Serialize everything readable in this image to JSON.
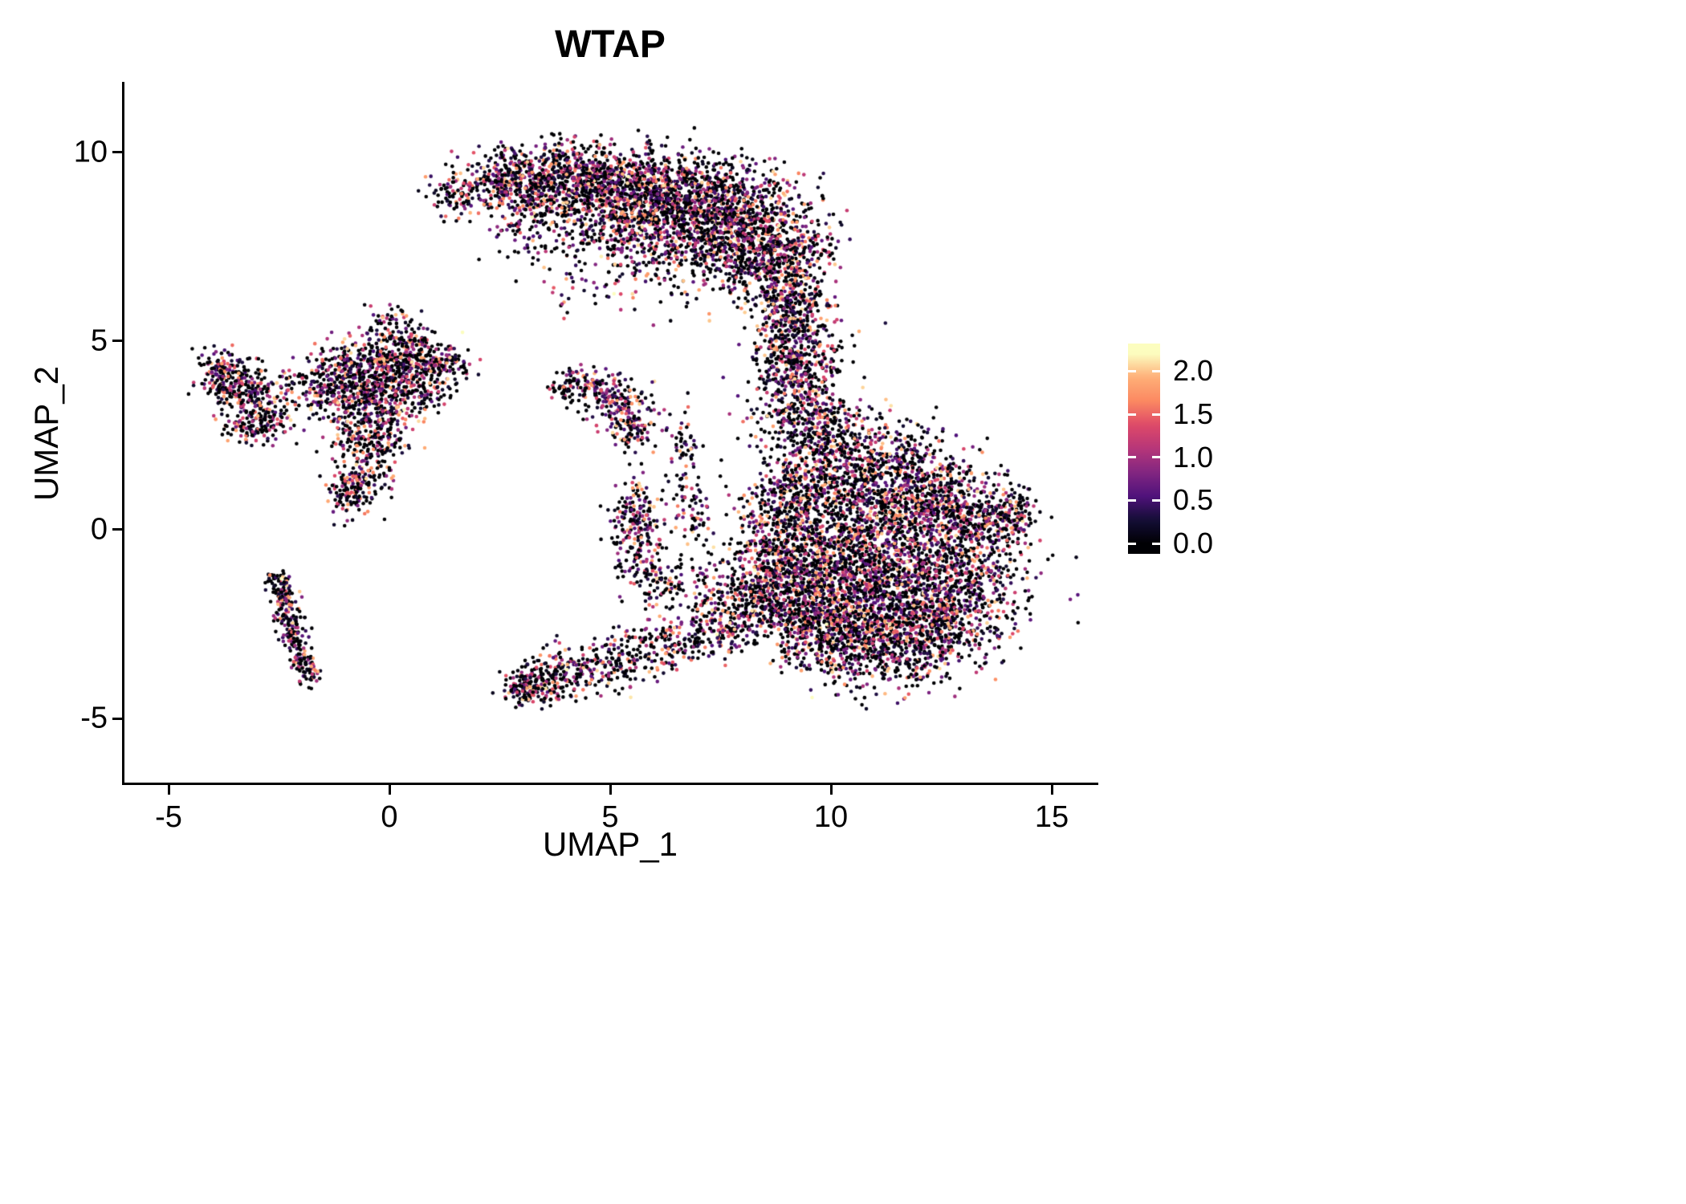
{
  "chart_data": {
    "type": "scatter",
    "title": "WTAP",
    "xlabel": "UMAP_1",
    "ylabel": "UMAP_2",
    "xlim": [
      -6,
      16
    ],
    "ylim": [
      -6.7,
      11.8
    ],
    "grid": false,
    "background": "#ffffff",
    "axis_color": "#000000",
    "point_radius": 2.3,
    "seed": 1234,
    "xticks": [
      {
        "value": -5,
        "label": "-5"
      },
      {
        "value": 0,
        "label": "0"
      },
      {
        "value": 5,
        "label": "5"
      },
      {
        "value": 10,
        "label": "10"
      },
      {
        "value": 15,
        "label": "15"
      }
    ],
    "yticks": [
      {
        "value": -5,
        "label": "-5"
      },
      {
        "value": 0,
        "label": "0"
      },
      {
        "value": 5,
        "label": "5"
      },
      {
        "value": 10,
        "label": "10"
      }
    ],
    "colorbar": {
      "colormap": "magma",
      "data_range": [
        0,
        2.2
      ],
      "bar_range": [
        -0.12,
        2.32
      ],
      "ticks": [
        {
          "value": 2.0,
          "label": "2.0"
        },
        {
          "value": 1.5,
          "label": "1.5"
        },
        {
          "value": 1.0,
          "label": "1.0"
        },
        {
          "value": 0.5,
          "label": "0.5"
        },
        {
          "value": 0.0,
          "label": "0.0"
        }
      ],
      "stops": [
        {
          "t": 0.0,
          "color": "#000004"
        },
        {
          "t": 0.125,
          "color": "#140e36"
        },
        {
          "t": 0.25,
          "color": "#50127b"
        },
        {
          "t": 0.375,
          "color": "#822681"
        },
        {
          "t": 0.5,
          "color": "#b63679"
        },
        {
          "t": 0.625,
          "color": "#de4968"
        },
        {
          "t": 0.75,
          "color": "#fb8861"
        },
        {
          "t": 0.875,
          "color": "#feae77"
        },
        {
          "t": 1.0,
          "color": "#fcfdbf"
        }
      ]
    },
    "value_distribution": {
      "p_zero": 0.35,
      "gamma": 1.6,
      "scale": 2.1,
      "max": 2.2
    },
    "cluster_format": [
      "x",
      "y",
      "sx",
      "sy",
      "n"
    ],
    "clusters": [
      [
        1.5,
        8.9,
        0.35,
        0.3,
        80
      ],
      [
        2.3,
        9.2,
        0.5,
        0.35,
        150
      ],
      [
        3.2,
        9.4,
        0.6,
        0.4,
        240
      ],
      [
        4.2,
        9.4,
        0.7,
        0.45,
        300
      ],
      [
        5.2,
        9.2,
        0.8,
        0.5,
        380
      ],
      [
        6.2,
        9.0,
        0.9,
        0.55,
        450
      ],
      [
        7.2,
        8.6,
        0.9,
        0.6,
        470
      ],
      [
        8.1,
        8.2,
        0.8,
        0.7,
        420
      ],
      [
        8.8,
        7.4,
        0.6,
        0.7,
        300
      ],
      [
        9.0,
        6.4,
        0.5,
        0.6,
        220
      ],
      [
        6.8,
        7.6,
        1.0,
        0.5,
        280
      ],
      [
        5.8,
        8.1,
        0.9,
        0.5,
        220
      ],
      [
        4.6,
        8.5,
        0.8,
        0.4,
        150
      ],
      [
        3.4,
        8.7,
        0.6,
        0.35,
        100
      ],
      [
        7.8,
        7.0,
        0.7,
        0.5,
        180
      ],
      [
        5.5,
        7.2,
        1.2,
        0.6,
        80
      ],
      [
        4.2,
        7.7,
        0.8,
        0.4,
        50
      ],
      [
        2.9,
        8.0,
        0.4,
        0.5,
        50
      ],
      [
        4.8,
        6.4,
        1.0,
        0.5,
        40
      ],
      [
        9.2,
        5.6,
        0.4,
        0.5,
        160
      ],
      [
        9.4,
        4.7,
        0.5,
        0.5,
        180
      ],
      [
        9.2,
        3.8,
        0.55,
        0.5,
        200
      ],
      [
        9.5,
        2.9,
        0.6,
        0.5,
        220
      ],
      [
        8.8,
        4.8,
        0.3,
        0.6,
        80
      ],
      [
        10.3,
        2.3,
        0.8,
        0.5,
        220
      ],
      [
        11.3,
        1.6,
        1.0,
        0.6,
        320
      ],
      [
        10.2,
        1.2,
        0.9,
        0.6,
        280
      ],
      [
        11.0,
        0.4,
        1.3,
        0.7,
        550
      ],
      [
        12.4,
        0.6,
        0.9,
        0.6,
        350
      ],
      [
        13.4,
        0.2,
        0.6,
        0.5,
        220
      ],
      [
        14.1,
        0.4,
        0.3,
        0.35,
        90
      ],
      [
        11.6,
        -0.9,
        1.4,
        0.7,
        650
      ],
      [
        12.7,
        -1.6,
        0.9,
        0.6,
        380
      ],
      [
        10.4,
        -1.6,
        1.1,
        0.7,
        480
      ],
      [
        11.4,
        -2.4,
        1.1,
        0.6,
        420
      ],
      [
        12.6,
        -2.7,
        0.7,
        0.5,
        230
      ],
      [
        10.4,
        -3.0,
        0.8,
        0.5,
        260
      ],
      [
        11.4,
        -3.4,
        0.8,
        0.4,
        200
      ],
      [
        9.6,
        -0.6,
        0.7,
        0.7,
        300
      ],
      [
        9.2,
        -1.8,
        0.6,
        0.6,
        240
      ],
      [
        9.8,
        -2.6,
        0.7,
        0.5,
        220
      ],
      [
        9.0,
        0.8,
        0.5,
        0.7,
        200
      ],
      [
        8.6,
        -0.3,
        0.4,
        0.6,
        150
      ],
      [
        8.5,
        -1.4,
        0.45,
        0.5,
        140
      ],
      [
        8.0,
        -2.2,
        0.5,
        0.4,
        130
      ],
      [
        7.2,
        -2.7,
        0.6,
        0.35,
        120
      ],
      [
        6.3,
        -3.1,
        0.6,
        0.35,
        110
      ],
      [
        5.3,
        -3.5,
        0.6,
        0.35,
        120
      ],
      [
        4.3,
        -3.8,
        0.5,
        0.3,
        130
      ],
      [
        3.4,
        -4.0,
        0.35,
        0.3,
        150
      ],
      [
        3.0,
        -4.2,
        0.2,
        0.2,
        80
      ],
      [
        5.7,
        -0.4,
        0.35,
        0.6,
        140
      ],
      [
        5.5,
        0.6,
        0.3,
        0.4,
        90
      ],
      [
        6.2,
        -1.4,
        0.4,
        0.4,
        90
      ],
      [
        6.7,
        1.7,
        0.2,
        0.7,
        70
      ],
      [
        6.9,
        0.3,
        0.25,
        0.4,
        50
      ],
      [
        7.5,
        -1.6,
        0.4,
        0.4,
        80
      ],
      [
        4.3,
        3.9,
        0.3,
        0.2,
        60
      ],
      [
        4.9,
        3.6,
        0.35,
        0.3,
        100
      ],
      [
        5.3,
        3.1,
        0.35,
        0.35,
        110
      ],
      [
        5.6,
        2.6,
        0.3,
        0.3,
        70
      ],
      [
        3.9,
        3.7,
        0.15,
        0.15,
        25
      ],
      [
        -3.6,
        4.0,
        0.35,
        0.3,
        120
      ],
      [
        -3.1,
        3.4,
        0.45,
        0.4,
        180
      ],
      [
        -3.9,
        4.3,
        0.25,
        0.25,
        60
      ],
      [
        -2.7,
        2.9,
        0.3,
        0.3,
        80
      ],
      [
        -3.3,
        2.6,
        0.2,
        0.2,
        40
      ],
      [
        -0.3,
        4.4,
        0.7,
        0.35,
        240
      ],
      [
        0.7,
        4.5,
        0.45,
        0.3,
        130
      ],
      [
        1.4,
        4.5,
        0.25,
        0.2,
        50
      ],
      [
        -0.6,
        3.8,
        0.55,
        0.4,
        220
      ],
      [
        0.2,
        3.5,
        0.45,
        0.45,
        180
      ],
      [
        -0.9,
        3.0,
        0.4,
        0.4,
        140
      ],
      [
        -0.2,
        2.5,
        0.3,
        0.4,
        110
      ],
      [
        -0.5,
        1.7,
        0.3,
        0.5,
        140
      ],
      [
        -0.9,
        1.0,
        0.25,
        0.3,
        110
      ],
      [
        -0.1,
        5.2,
        0.25,
        0.4,
        70
      ],
      [
        0.5,
        5.0,
        0.3,
        0.3,
        60
      ],
      [
        -1.3,
        4.1,
        0.3,
        0.3,
        70
      ],
      [
        0.9,
        3.9,
        0.3,
        0.3,
        70
      ],
      [
        -1.6,
        3.6,
        0.2,
        0.2,
        40
      ],
      [
        -2.2,
        3.9,
        0.2,
        0.2,
        30
      ],
      [
        -2.45,
        -1.6,
        0.12,
        0.25,
        50
      ],
      [
        -2.35,
        -2.2,
        0.15,
        0.35,
        80
      ],
      [
        -2.15,
        -2.9,
        0.15,
        0.35,
        70
      ],
      [
        -1.95,
        -3.5,
        0.12,
        0.3,
        50
      ],
      [
        -2.6,
        -1.3,
        0.1,
        0.1,
        20
      ],
      [
        -1.75,
        -3.8,
        0.1,
        0.15,
        25
      ]
    ]
  }
}
